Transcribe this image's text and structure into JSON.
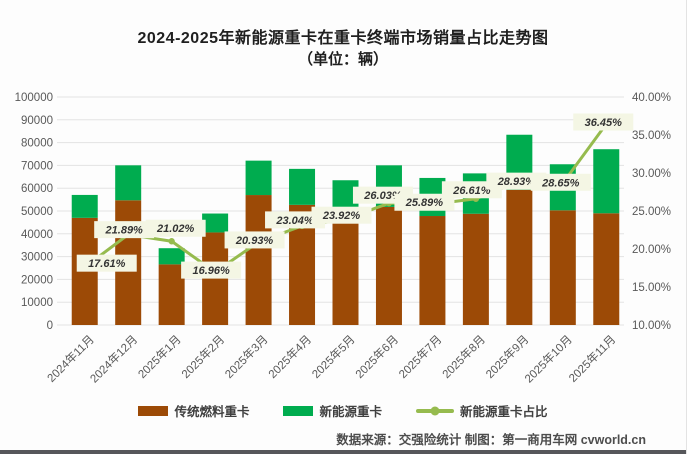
{
  "title": "2024-2025年新能源重卡在重卡终端市场销量占比走势图",
  "subtitle": "（单位：辆）",
  "footer": "数据来源：交强险统计 制图：第一商用车网 cvworld.cn",
  "colors": {
    "traditional_bar": "#9C4A06",
    "new_energy_bar": "#00AC4F",
    "share_line": "#96BB4E",
    "callout_bg": "#F4F6E4",
    "gridline": "#E3E3E3",
    "axis_text": "#595959"
  },
  "legend": [
    {
      "label": "传统燃料重卡",
      "type": "bar",
      "color": "#9C4A06"
    },
    {
      "label": "新能源重卡",
      "type": "bar",
      "color": "#00AC4F"
    },
    {
      "label": "新能源重卡占比",
      "type": "line",
      "color": "#96BB4E"
    }
  ],
  "chart_data": {
    "type": "bar",
    "subtype": "stacked-bars-with-line",
    "categories": [
      "2024年11月",
      "2024年12月",
      "2025年1月",
      "2025年2月",
      "2025年3月",
      "2025年4月",
      "2025年5月",
      "2025年6月",
      "2025年7月",
      "2025年8月",
      "2025年9月",
      "2025年10月",
      "2025年11月"
    ],
    "series": [
      {
        "name": "传统燃料重卡",
        "chart": "bar",
        "stack": "total",
        "color": "#9C4A06",
        "axis": "left",
        "values": [
          47000,
          54700,
          26600,
          40600,
          57000,
          52700,
          48300,
          51800,
          47800,
          48800,
          59300,
          50300,
          49000
        ]
      },
      {
        "name": "新能源重卡",
        "chart": "bar",
        "stack": "total",
        "color": "#00AC4F",
        "axis": "left",
        "values": [
          10050,
          15330,
          7080,
          8290,
          15090,
          15780,
          15190,
          18230,
          16700,
          17700,
          24150,
          20200,
          28100
        ]
      },
      {
        "name": "新能源重卡占比",
        "chart": "line",
        "color": "#96BB4E",
        "axis": "right",
        "values": [
          17.61,
          21.89,
          21.02,
          16.96,
          20.93,
          23.04,
          23.92,
          26.03,
          25.89,
          26.61,
          28.93,
          28.65,
          36.45
        ],
        "point_labels": [
          "17.61%",
          "21.89%",
          "21.02%",
          "16.96%",
          "20.93%",
          "23.04%",
          "23.92%",
          "26.03%",
          "25.89%",
          "26.61%",
          "28.93%",
          "28.65%",
          "36.45%"
        ]
      }
    ],
    "left_axis": {
      "min": 0,
      "max": 100000,
      "step": 10000,
      "tick_labels": [
        "0",
        "10000",
        "20000",
        "30000",
        "40000",
        "50000",
        "60000",
        "70000",
        "80000",
        "90000",
        "100000"
      ]
    },
    "right_axis": {
      "min": 10,
      "max": 40,
      "step": 5,
      "tick_labels": [
        "10.00%",
        "15.00%",
        "20.00%",
        "25.00%",
        "30.00%",
        "35.00%",
        "40.00%"
      ]
    },
    "grid": true,
    "legend_position": "bottom"
  }
}
